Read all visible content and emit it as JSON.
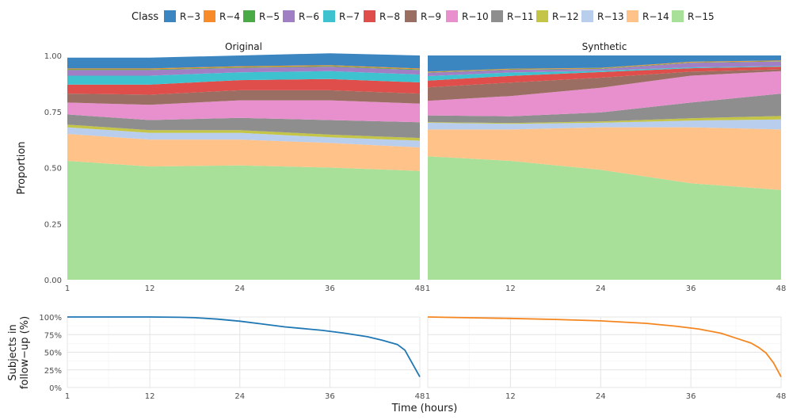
{
  "legend": {
    "title": "Class",
    "entries": [
      {
        "label": "R−3",
        "color": "#3b86c1"
      },
      {
        "label": "R−4",
        "color": "#f78a29"
      },
      {
        "label": "R−5",
        "color": "#4aab46"
      },
      {
        "label": "R−6",
        "color": "#a07fc5"
      },
      {
        "label": "R−7",
        "color": "#3ec2cf"
      },
      {
        "label": "R−8",
        "color": "#df4e4a"
      },
      {
        "label": "R−9",
        "color": "#9b6e63"
      },
      {
        "label": "R−10",
        "color": "#e88fce"
      },
      {
        "label": "R−11",
        "color": "#8e8e8e"
      },
      {
        "label": "R−12",
        "color": "#c4c447"
      },
      {
        "label": "R−13",
        "color": "#b9cdec"
      },
      {
        "label": "R−14",
        "color": "#ffc38a"
      },
      {
        "label": "R−15",
        "color": "#a8e09a"
      }
    ]
  },
  "axes": {
    "ylabel_top": "Proportion",
    "ylabel_bottom_line1": "Subjects in",
    "ylabel_bottom_line2": "follow−up (%)",
    "xlabel": "Time (hours)",
    "x_ticks": [
      1,
      12,
      24,
      36,
      48
    ],
    "x_tick_labels": [
      "1",
      "12",
      "24",
      "36",
      "48"
    ],
    "top_y_ticks": [
      0,
      0.25,
      0.5,
      0.75,
      1.0
    ],
    "top_y_tick_labels": [
      "0.00",
      "0.25",
      "0.50",
      "0.75",
      "1.00"
    ],
    "bottom_y_ticks": [
      0,
      25,
      50,
      75,
      100
    ],
    "bottom_y_tick_labels": [
      "0%",
      "25%",
      "50%",
      "75%",
      "100%"
    ]
  },
  "chart_data": [
    {
      "type": "area",
      "title": "Original",
      "stacking": "proportion",
      "x": [
        1,
        12,
        24,
        36,
        48
      ],
      "xlim": [
        1,
        48
      ],
      "ylim": [
        0,
        1
      ],
      "series": [
        {
          "name": "R−15",
          "color": "#a8e09a",
          "values": [
            0.53,
            0.505,
            0.51,
            0.5,
            0.485
          ]
        },
        {
          "name": "R−14",
          "color": "#ffc38a",
          "values": [
            0.12,
            0.12,
            0.115,
            0.11,
            0.105
          ]
        },
        {
          "name": "R−13",
          "color": "#b9cdec",
          "values": [
            0.03,
            0.03,
            0.03,
            0.025,
            0.03
          ]
        },
        {
          "name": "R−12",
          "color": "#c4c447",
          "values": [
            0.012,
            0.012,
            0.012,
            0.012,
            0.012
          ]
        },
        {
          "name": "R−11",
          "color": "#8e8e8e",
          "values": [
            0.045,
            0.045,
            0.055,
            0.065,
            0.07
          ]
        },
        {
          "name": "R−10",
          "color": "#e88fce",
          "values": [
            0.053,
            0.068,
            0.078,
            0.088,
            0.083
          ]
        },
        {
          "name": "R−9",
          "color": "#9b6e63",
          "values": [
            0.04,
            0.045,
            0.045,
            0.045,
            0.045
          ]
        },
        {
          "name": "R−8",
          "color": "#df4e4a",
          "values": [
            0.04,
            0.045,
            0.045,
            0.05,
            0.05
          ]
        },
        {
          "name": "R−7",
          "color": "#3ec2cf",
          "values": [
            0.04,
            0.04,
            0.035,
            0.035,
            0.035
          ]
        },
        {
          "name": "R−6",
          "color": "#a07fc5",
          "values": [
            0.025,
            0.025,
            0.02,
            0.02,
            0.02
          ]
        },
        {
          "name": "R−5",
          "color": "#4aab46",
          "values": [
            0.003,
            0.003,
            0.003,
            0.003,
            0.003
          ]
        },
        {
          "name": "R−4",
          "color": "#f78a29",
          "values": [
            0.004,
            0.004,
            0.004,
            0.004,
            0.004
          ]
        },
        {
          "name": "R−3",
          "color": "#3b86c1",
          "values": [
            0.048,
            0.048,
            0.048,
            0.053,
            0.058
          ]
        }
      ]
    },
    {
      "type": "area",
      "title": "Synthetic",
      "stacking": "proportion",
      "x": [
        1,
        12,
        24,
        36,
        48
      ],
      "xlim": [
        1,
        48
      ],
      "ylim": [
        0,
        1
      ],
      "series": [
        {
          "name": "R−15",
          "color": "#a8e09a",
          "values": [
            0.55,
            0.53,
            0.49,
            0.43,
            0.4
          ]
        },
        {
          "name": "R−14",
          "color": "#ffc38a",
          "values": [
            0.12,
            0.14,
            0.19,
            0.25,
            0.27
          ]
        },
        {
          "name": "R−13",
          "color": "#b9cdec",
          "values": [
            0.03,
            0.025,
            0.02,
            0.03,
            0.045
          ]
        },
        {
          "name": "R−12",
          "color": "#c4c447",
          "values": [
            0.003,
            0.004,
            0.006,
            0.01,
            0.015
          ]
        },
        {
          "name": "R−11",
          "color": "#8e8e8e",
          "values": [
            0.03,
            0.03,
            0.04,
            0.07,
            0.1
          ]
        },
        {
          "name": "R−10",
          "color": "#e88fce",
          "values": [
            0.065,
            0.09,
            0.11,
            0.12,
            0.1
          ]
        },
        {
          "name": "R−9",
          "color": "#9b6e63",
          "values": [
            0.06,
            0.06,
            0.045,
            0.018,
            0.008
          ]
        },
        {
          "name": "R−8",
          "color": "#df4e4a",
          "values": [
            0.03,
            0.03,
            0.025,
            0.015,
            0.012
          ]
        },
        {
          "name": "R−7",
          "color": "#3ec2cf",
          "values": [
            0.02,
            0.015,
            0.006,
            0.004,
            0.003
          ]
        },
        {
          "name": "R−6",
          "color": "#a07fc5",
          "values": [
            0.015,
            0.012,
            0.008,
            0.02,
            0.02
          ]
        },
        {
          "name": "R−5",
          "color": "#4aab46",
          "values": [
            0.002,
            0.002,
            0.002,
            0.002,
            0.002
          ]
        },
        {
          "name": "R−4",
          "color": "#f78a29",
          "values": [
            0.003,
            0.003,
            0.003,
            0.003,
            0.003
          ]
        },
        {
          "name": "R−3",
          "color": "#3b86c1",
          "values": [
            0.072,
            0.059,
            0.055,
            0.028,
            0.022
          ]
        }
      ]
    },
    {
      "type": "line",
      "panel": "Original",
      "ylabel": "Subjects in follow−up (%)",
      "xlim": [
        1,
        48
      ],
      "ylim": [
        0,
        100
      ],
      "series": [
        {
          "name": "Original",
          "color": "#1f77b4",
          "x": [
            1,
            12,
            16,
            18,
            21,
            24,
            27,
            30,
            33,
            35,
            38,
            41,
            43,
            45,
            46,
            48
          ],
          "values": [
            100,
            100,
            99.5,
            99,
            97,
            94,
            90,
            86,
            83,
            81,
            77,
            72,
            67,
            61,
            53,
            15
          ]
        }
      ]
    },
    {
      "type": "line",
      "panel": "Synthetic",
      "ylabel": "Subjects in follow−up (%)",
      "xlim": [
        1,
        48
      ],
      "ylim": [
        0,
        100
      ],
      "series": [
        {
          "name": "Synthetic",
          "color": "#f5861f",
          "x": [
            1,
            6,
            12,
            18,
            24,
            30,
            34,
            37,
            40,
            42,
            44,
            45,
            46,
            47,
            48
          ],
          "values": [
            100,
            99,
            98,
            96.5,
            94.5,
            91,
            87,
            83,
            77,
            70,
            63,
            57,
            49,
            35,
            15
          ]
        }
      ]
    }
  ]
}
